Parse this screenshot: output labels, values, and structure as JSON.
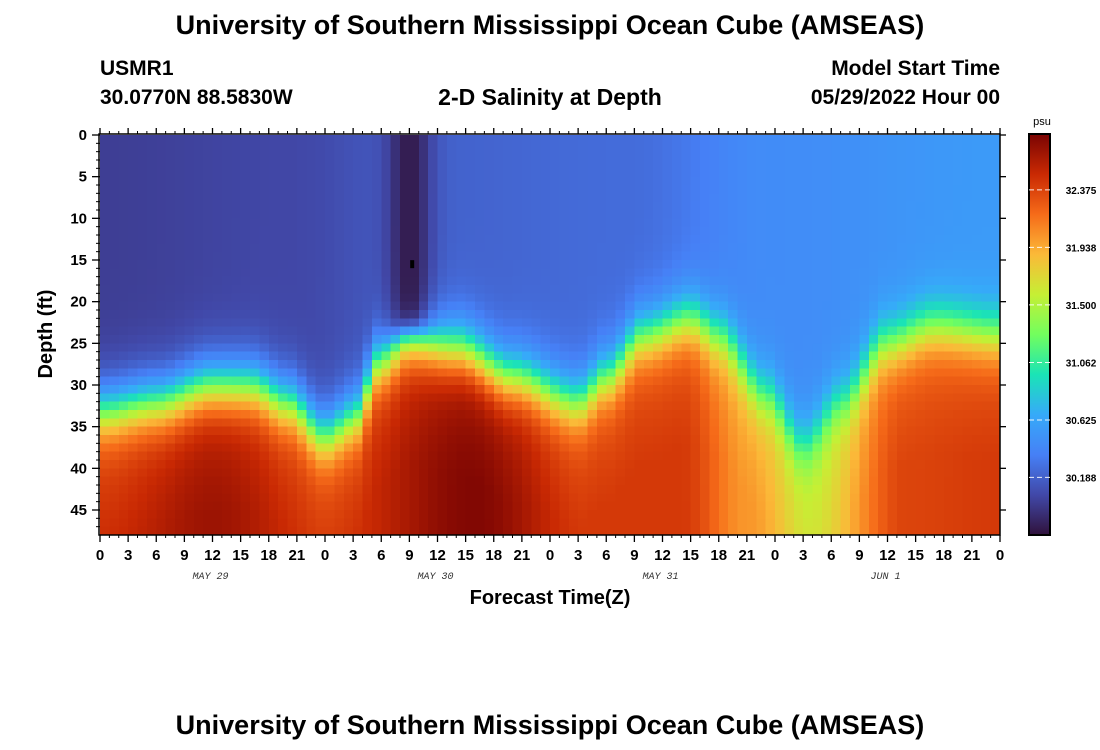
{
  "header": {
    "title": "University of Southern Mississippi Ocean Cube (AMSEAS)",
    "station_id": "USMR1",
    "station_coords": "30.0770N  88.5830W",
    "plot_title": "2-D Salinity at Depth",
    "model_start_label": "Model Start Time",
    "model_start_value": "05/29/2022 Hour 00"
  },
  "footer": {
    "title": "University of Southern Mississippi Ocean Cube (AMSEAS)"
  },
  "chart_data": {
    "type": "heatmap",
    "title": "2-D Salinity at Depth",
    "xlabel": "Forecast Time(Z)",
    "ylabel": "Depth (ft)",
    "x_tick_labels": [
      "0",
      "3",
      "6",
      "9",
      "12",
      "15",
      "18",
      "21",
      "0",
      "3",
      "6",
      "9",
      "12",
      "15",
      "18",
      "21",
      "0",
      "3",
      "6",
      "9",
      "12",
      "15",
      "18",
      "21",
      "0",
      "3",
      "6",
      "9",
      "12",
      "15",
      "18",
      "21",
      "0"
    ],
    "x_range_hours": [
      0,
      96
    ],
    "day_labels": [
      {
        "label": "MAY 29",
        "hour": 12
      },
      {
        "label": "MAY 30",
        "hour": 36
      },
      {
        "label": "MAY 31",
        "hour": 60
      },
      {
        "label": "JUN 1",
        "hour": 84
      }
    ],
    "y_ticks": [
      0,
      5,
      10,
      15,
      20,
      25,
      30,
      35,
      40,
      45
    ],
    "y_range_ft": [
      0,
      48
    ],
    "y_inverted": true,
    "colorbar": {
      "unit": "psu",
      "ticks": [
        "32.375",
        "31.938",
        "31.500",
        "31.062",
        "30.625",
        "30.188"
      ],
      "tick_values": [
        32.375,
        31.938,
        31.5,
        31.062,
        30.625,
        30.188
      ],
      "range": [
        29.75,
        32.8
      ]
    },
    "interface_depth_ft": [
      {
        "hour": 0,
        "depth": 33
      },
      {
        "hour": 6,
        "depth": 32
      },
      {
        "hour": 12,
        "depth": 30
      },
      {
        "hour": 16,
        "depth": 30
      },
      {
        "hour": 20,
        "depth": 32
      },
      {
        "hour": 24,
        "depth": 36
      },
      {
        "hour": 27,
        "depth": 34
      },
      {
        "hour": 30,
        "depth": 27
      },
      {
        "hour": 33,
        "depth": 24.5
      },
      {
        "hour": 38,
        "depth": 25.5
      },
      {
        "hour": 44,
        "depth": 29
      },
      {
        "hour": 51,
        "depth": 32
      },
      {
        "hour": 54,
        "depth": 29
      },
      {
        "hour": 58,
        "depth": 24
      },
      {
        "hour": 63,
        "depth": 22
      },
      {
        "hour": 66,
        "depth": 24
      },
      {
        "hour": 71,
        "depth": 31
      },
      {
        "hour": 75,
        "depth": 37
      },
      {
        "hour": 79,
        "depth": 32
      },
      {
        "hour": 84,
        "depth": 25
      },
      {
        "hour": 89,
        "depth": 23
      },
      {
        "hour": 96,
        "depth": 24
      }
    ],
    "surface_salinity_psu": [
      {
        "hour": 0,
        "value": 30.0
      },
      {
        "hour": 20,
        "value": 30.05
      },
      {
        "hour": 36,
        "value": 30.2
      },
      {
        "hour": 56,
        "value": 30.25
      },
      {
        "hour": 72,
        "value": 30.45
      },
      {
        "hour": 96,
        "value": 30.55
      }
    ],
    "bottom_salinity_psu": [
      {
        "hour": 0,
        "value": 32.35
      },
      {
        "hour": 12,
        "value": 32.55
      },
      {
        "hour": 24,
        "value": 32.3
      },
      {
        "hour": 40,
        "value": 32.65
      },
      {
        "hour": 52,
        "value": 32.3
      },
      {
        "hour": 62,
        "value": 32.3
      },
      {
        "hour": 69,
        "value": 31.9
      },
      {
        "hour": 76,
        "value": 31.55
      },
      {
        "hour": 86,
        "value": 32.25
      },
      {
        "hour": 96,
        "value": 32.3
      }
    ],
    "fresh_plume": {
      "center_hour": 33,
      "min_psu": 29.8,
      "bottom_depth_ft": 22
    },
    "colors": {
      "scale": [
        "#30123b",
        "#4148a8",
        "#4680f6",
        "#36aaf9",
        "#1ae4b6",
        "#72fe5e",
        "#c6ef34",
        "#fbb938",
        "#f66b19",
        "#c92903",
        "#7a0403"
      ]
    }
  }
}
